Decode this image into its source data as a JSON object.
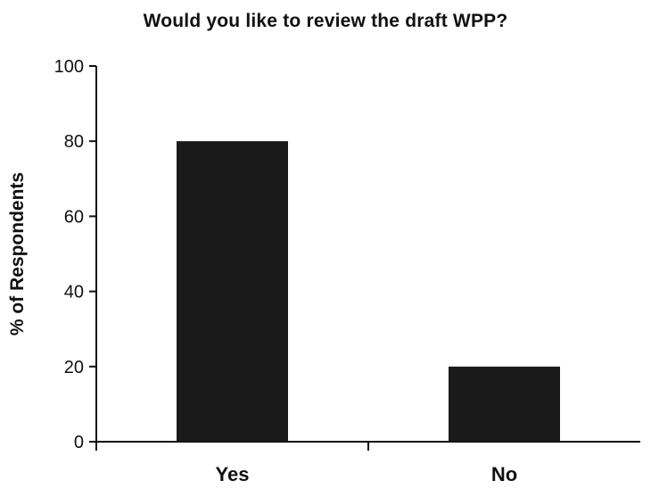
{
  "chart_data": {
    "type": "bar",
    "title": "Would you like to review the draft WPP?",
    "xlabel": "",
    "ylabel": "% of Respondents",
    "categories": [
      "Yes",
      "No"
    ],
    "values": [
      80,
      20
    ],
    "ylim": [
      0,
      100
    ],
    "yticks": [
      0,
      20,
      40,
      60,
      80,
      100
    ],
    "grid": false,
    "legend": "none",
    "bar_color": "#1a1a1a"
  }
}
